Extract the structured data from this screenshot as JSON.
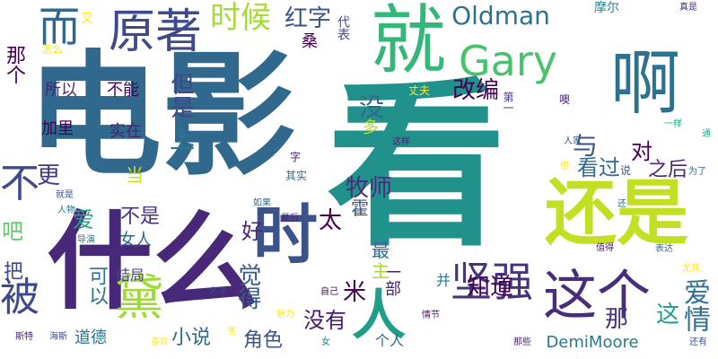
{
  "words": [
    {
      "text": "电影",
      "color": "#31688e"
    },
    {
      "text": "看",
      "color": "#21918c"
    },
    {
      "text": "啊",
      "color": "#2c728e"
    },
    {
      "text": "什么",
      "color": "#482878"
    },
    {
      "text": "就",
      "color": "#35b779"
    },
    {
      "text": "还是",
      "color": "#c2df23"
    },
    {
      "text": "原著",
      "color": "#3e4a89"
    },
    {
      "text": "时",
      "color": "#3b528b"
    },
    {
      "text": "这个",
      "color": "#472d7b"
    },
    {
      "text": "而",
      "color": "#31688e"
    },
    {
      "text": "Gary",
      "color": "#4ac16d"
    },
    {
      "text": "时候",
      "color": "#a5db36"
    },
    {
      "text": "Oldman",
      "color": "#2c728e"
    },
    {
      "text": "红字",
      "color": "#3b528b"
    },
    {
      "text": "坚强",
      "color": "#46337e"
    },
    {
      "text": "黛",
      "color": "#a0da39"
    },
    {
      "text": "被",
      "color": "#3e4989"
    },
    {
      "text": "人",
      "color": "#1f9e89"
    },
    {
      "text": "不",
      "color": "#3e4a89"
    },
    {
      "text": "改编",
      "color": "#440154"
    },
    {
      "text": "牧师",
      "color": "#472c7a"
    },
    {
      "text": "但是",
      "color": "#3f4788"
    },
    {
      "text": "知道",
      "color": "#440154"
    },
    {
      "text": "觉得",
      "color": "#38598c"
    },
    {
      "text": "爱情",
      "color": "#2c728e"
    },
    {
      "text": "没有",
      "color": "#481769"
    },
    {
      "text": "没",
      "color": "#31688e"
    },
    {
      "text": "太",
      "color": "#440154"
    },
    {
      "text": "那个",
      "color": "#440154"
    },
    {
      "text": "上",
      "color": "#2a788e"
    },
    {
      "text": "与",
      "color": "#3b528b"
    },
    {
      "text": "看过",
      "color": "#31688e"
    },
    {
      "text": "对",
      "color": "#440154"
    },
    {
      "text": "之后",
      "color": "#482576"
    },
    {
      "text": "更",
      "color": "#453882"
    },
    {
      "text": "爱",
      "color": "#20a486"
    },
    {
      "text": "吧",
      "color": "#5ec962"
    },
    {
      "text": "好",
      "color": "#482475"
    },
    {
      "text": "不是",
      "color": "#46327e"
    },
    {
      "text": "小说",
      "color": "#31688e"
    },
    {
      "text": "角色",
      "color": "#3b528b"
    },
    {
      "text": "米",
      "color": "#440154"
    },
    {
      "text": "那",
      "color": "#46337e"
    },
    {
      "text": "这",
      "color": "#1f9e89"
    },
    {
      "text": "一部",
      "color": "#482071"
    },
    {
      "text": "最",
      "color": "#31688e"
    },
    {
      "text": "主",
      "color": "#a5db36"
    },
    {
      "text": "霍",
      "color": "#3b528b"
    },
    {
      "text": "可以",
      "color": "#2c728e"
    },
    {
      "text": "把",
      "color": "#3e4a89"
    },
    {
      "text": "女人",
      "color": "#31688e"
    },
    {
      "text": "多",
      "color": "#b5de2b"
    },
    {
      "text": "所以",
      "color": "#482576"
    },
    {
      "text": "不能",
      "color": "#440154"
    },
    {
      "text": "加里",
      "color": "#440154"
    },
    {
      "text": "实在",
      "color": "#482071"
    },
    {
      "text": "当",
      "color": "#c8e020"
    },
    {
      "text": "结局",
      "color": "#433e85"
    },
    {
      "text": "道德",
      "color": "#2c728e"
    },
    {
      "text": "个人",
      "color": "#31688e"
    },
    {
      "text": "DemiMoore",
      "color": "#2a788e"
    },
    {
      "text": "并",
      "color": "#2a788e"
    },
    {
      "text": "摩尔",
      "color": "#26828e"
    },
    {
      "text": "又",
      "color": "#fde725"
    },
    {
      "text": "代表",
      "color": "#3e4989"
    },
    {
      "text": "桑",
      "color": "#440154"
    },
    {
      "text": "怎么",
      "color": "#fde725"
    },
    {
      "text": "丈夫",
      "color": "#fde725"
    },
    {
      "text": "第一",
      "color": "#46337e"
    },
    {
      "text": "噢",
      "color": "#482475"
    },
    {
      "text": "这样",
      "color": "#482071"
    },
    {
      "text": "一样",
      "color": "#22a884"
    },
    {
      "text": "人家",
      "color": "#38598c"
    },
    {
      "text": "说",
      "color": "#3b528b"
    },
    {
      "text": "其实",
      "color": "#2c728e"
    },
    {
      "text": "但",
      "color": "#fde725"
    },
    {
      "text": "为了",
      "color": "#31688e"
    },
    {
      "text": "通",
      "color": "#22a884"
    },
    {
      "text": "真是",
      "color": "#472d7b"
    },
    {
      "text": "就是",
      "color": "#3b528b"
    },
    {
      "text": "如果",
      "color": "#31688e"
    },
    {
      "text": "人物",
      "color": "#2a788e"
    },
    {
      "text": "还",
      "color": "#31688e"
    },
    {
      "text": "导演",
      "color": "#2c728e"
    },
    {
      "text": "最后",
      "color": "#482576"
    },
    {
      "text": "值得",
      "color": "#481467"
    },
    {
      "text": "表达",
      "color": "#31688e"
    },
    {
      "text": "尤其",
      "color": "#fde725"
    },
    {
      "text": "名字",
      "color": "#3e4a89"
    },
    {
      "text": "自己",
      "color": "#440154"
    },
    {
      "text": "情节",
      "color": "#481467"
    },
    {
      "text": "魅力",
      "color": "#fde725"
    },
    {
      "text": "那些",
      "color": "#482071"
    },
    {
      "text": "女",
      "color": "#2a788e"
    },
    {
      "text": "喜欢",
      "color": "#fde725"
    },
    {
      "text": "斯特",
      "color": "#482071"
    },
    {
      "text": "海斯",
      "color": "#3e4a89"
    },
    {
      "text": "还有",
      "color": "#3b528b"
    },
    {
      "text": "字",
      "color": "#482071"
    },
    {
      "text": "生",
      "color": "#fde725"
    }
  ]
}
